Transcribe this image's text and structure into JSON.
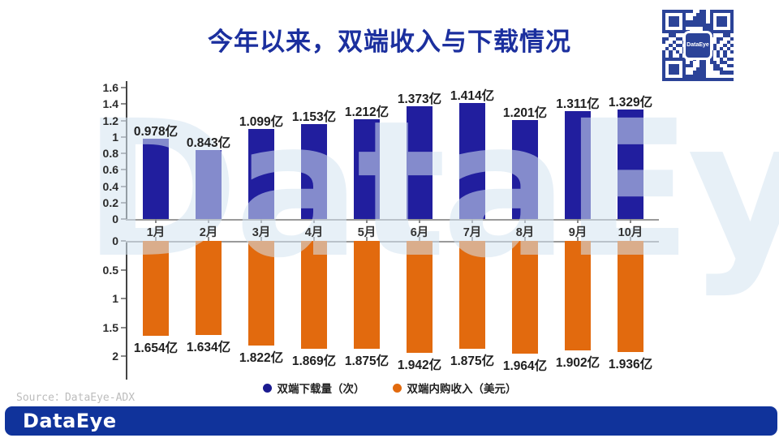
{
  "title": {
    "text": "今年以来，双端收入与下载情况",
    "color": "#1B2F9E"
  },
  "watermark": {
    "text": "DataEye"
  },
  "source": {
    "text": "Source：DataEye-ADX"
  },
  "footer": {
    "logo_text": "DataEye",
    "bg_color": "#10339B"
  },
  "qr": {
    "logo_text": "DataEye",
    "color": "#2B4398"
  },
  "colors": {
    "download_bar": "#211E9E",
    "revenue_bar": "#E26A0E",
    "axis": "#444444",
    "baseline": "#9A9A9A"
  },
  "legend": [
    {
      "label": "双端下载量（次）",
      "color": "#1B1B90"
    },
    {
      "label": "双端内购收入（美元）",
      "color": "#E26A0E"
    }
  ],
  "chart_data": {
    "type": "bar",
    "categories": [
      "1月",
      "2月",
      "3月",
      "4月",
      "5月",
      "6月",
      "7月",
      "8月",
      "9月",
      "10月"
    ],
    "series": [
      {
        "name": "双端下载量（次）",
        "unit": "亿",
        "direction": "up",
        "color": "#211E9E",
        "values": [
          0.978,
          0.843,
          1.099,
          1.153,
          1.212,
          1.373,
          1.414,
          1.201,
          1.311,
          1.329
        ],
        "labels": [
          "0.978亿",
          "0.843亿",
          "1.099亿",
          "1.153亿",
          "1.212亿",
          "1.373亿",
          "1.414亿",
          "1.201亿",
          "1.311亿",
          "1.329亿"
        ],
        "axis": {
          "min": 0,
          "max": 1.6,
          "tick_labels": [
            "1.6",
            "1.4",
            "1.2",
            "1",
            "0.8",
            "0.6",
            "0.4",
            "0.2",
            "0"
          ],
          "tick_values": [
            1.6,
            1.4,
            1.2,
            1,
            0.8,
            0.6,
            0.4,
            0.2,
            0
          ]
        }
      },
      {
        "name": "双端内购收入（美元）",
        "unit": "亿",
        "direction": "down",
        "color": "#E26A0E",
        "values": [
          1.654,
          1.634,
          1.822,
          1.869,
          1.875,
          1.942,
          1.875,
          1.964,
          1.902,
          1.936
        ],
        "labels": [
          "1.654亿",
          "1.634亿",
          "1.822亿",
          "1.869亿",
          "1.875亿",
          "1.942亿",
          "1.875亿",
          "1.964亿",
          "1.902亿",
          "1.936亿"
        ],
        "axis": {
          "min": 0,
          "max": 2,
          "tick_labels": [
            "0",
            "0.5",
            "1",
            "1.5",
            "2"
          ],
          "tick_values": [
            0,
            0.5,
            1,
            1.5,
            2
          ]
        }
      }
    ],
    "grid": false,
    "legend_position": "bottom"
  }
}
